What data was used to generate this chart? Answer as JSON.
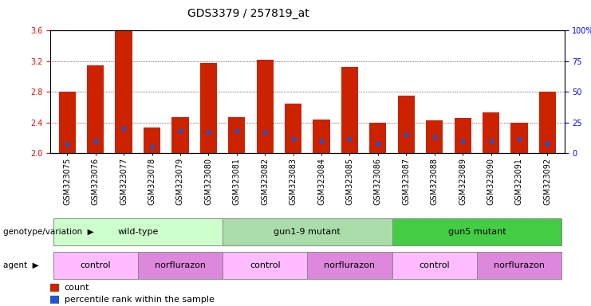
{
  "title": "GDS3379 / 257819_at",
  "samples": [
    "GSM323075",
    "GSM323076",
    "GSM323077",
    "GSM323078",
    "GSM323079",
    "GSM323080",
    "GSM323081",
    "GSM323082",
    "GSM323083",
    "GSM323084",
    "GSM323085",
    "GSM323086",
    "GSM323087",
    "GSM323088",
    "GSM323089",
    "GSM323090",
    "GSM323091",
    "GSM323092"
  ],
  "bar_heights": [
    2.8,
    3.15,
    3.6,
    2.33,
    2.47,
    3.18,
    2.47,
    3.22,
    2.65,
    2.44,
    3.12,
    2.4,
    2.75,
    2.43,
    2.46,
    2.53,
    2.4,
    2.8
  ],
  "blue_values": [
    7,
    10,
    20,
    5,
    18,
    17,
    18,
    17,
    12,
    10,
    12,
    8,
    15,
    13,
    10,
    10,
    12,
    8
  ],
  "bar_color": "#cc2200",
  "blue_color": "#2255cc",
  "ylim_left": [
    2.0,
    3.6
  ],
  "ylim_right": [
    0,
    100
  ],
  "yticks_left": [
    2.0,
    2.4,
    2.8,
    3.2,
    3.6
  ],
  "yticks_right": [
    0,
    25,
    50,
    75,
    100
  ],
  "ytick_labels_right": [
    "0",
    "25",
    "50",
    "75",
    "100%"
  ],
  "grid_values": [
    2.4,
    2.8,
    3.2
  ],
  "background_color": "#ffffff",
  "genotype_groups": [
    {
      "label": "wild-type",
      "start": 0,
      "end": 5,
      "color": "#ccffcc"
    },
    {
      "label": "gun1-9 mutant",
      "start": 6,
      "end": 11,
      "color": "#aaddaa"
    },
    {
      "label": "gun5 mutant",
      "start": 12,
      "end": 17,
      "color": "#44cc44"
    }
  ],
  "agent_groups": [
    {
      "label": "control",
      "start": 0,
      "end": 2,
      "color": "#ffbbff"
    },
    {
      "label": "norflurazon",
      "start": 3,
      "end": 5,
      "color": "#dd88dd"
    },
    {
      "label": "control",
      "start": 6,
      "end": 8,
      "color": "#ffbbff"
    },
    {
      "label": "norflurazon",
      "start": 9,
      "end": 11,
      "color": "#dd88dd"
    },
    {
      "label": "control",
      "start": 12,
      "end": 14,
      "color": "#ffbbff"
    },
    {
      "label": "norflurazon",
      "start": 15,
      "end": 17,
      "color": "#dd88dd"
    }
  ],
  "legend_count_color": "#cc2200",
  "legend_pct_color": "#2255cc",
  "legend_count_label": "count",
  "legend_pct_label": "percentile rank within the sample",
  "title_fontsize": 10,
  "tick_fontsize": 7,
  "label_fontsize": 8,
  "annot_fontsize": 8
}
